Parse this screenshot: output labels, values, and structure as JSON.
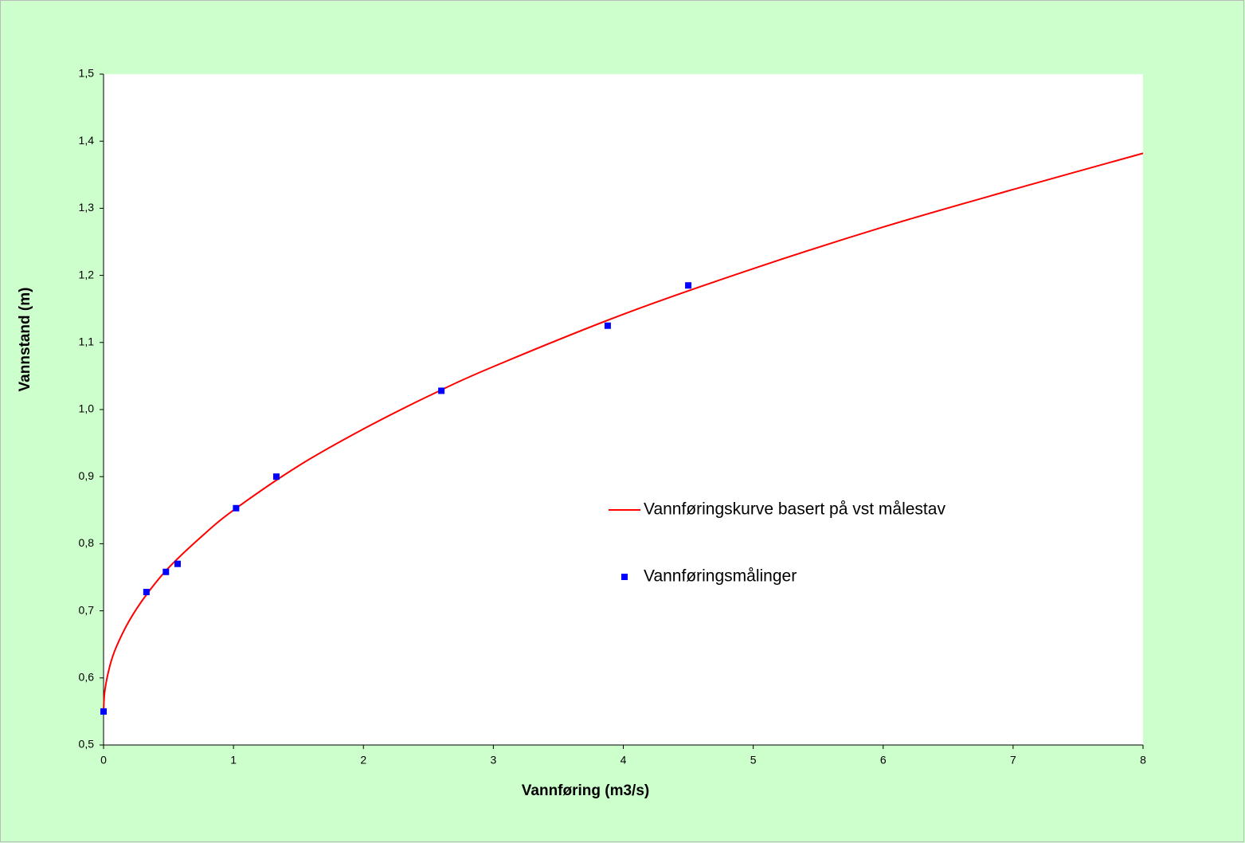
{
  "chart_data": {
    "type": "scatter",
    "xlabel": "Vannføring (m3/s)",
    "ylabel": "Vannstand (m)",
    "xlim": [
      0,
      8
    ],
    "xticks": [
      0,
      1,
      2,
      3,
      4,
      5,
      6,
      7,
      8
    ],
    "ylim": [
      0.5,
      1.5
    ],
    "yticks": [
      {
        "value": 0.5,
        "label": "0,5"
      },
      {
        "value": 0.6,
        "label": "0,6"
      },
      {
        "value": 0.7,
        "label": "0,7"
      },
      {
        "value": 0.8,
        "label": "0,8"
      },
      {
        "value": 0.9,
        "label": "0,9"
      },
      {
        "value": 1.0,
        "label": "1,0"
      },
      {
        "value": 1.1,
        "label": "1,1"
      },
      {
        "value": 1.2,
        "label": "1,2"
      },
      {
        "value": 1.3,
        "label": "1,3"
      },
      {
        "value": 1.4,
        "label": "1,4"
      },
      {
        "value": 1.5,
        "label": "1,5"
      }
    ],
    "series": [
      {
        "name": "Vannføringskurve basert på vst målestav",
        "type": "line",
        "color": "#ff0000",
        "x": [
          0,
          0.01,
          0.05,
          0.1,
          0.2,
          0.33,
          0.5,
          0.75,
          1,
          1.5,
          2,
          2.5,
          3,
          4,
          5,
          6,
          7,
          8
        ],
        "values": [
          0.55,
          0.581,
          0.619,
          0.647,
          0.686,
          0.724,
          0.764,
          0.81,
          0.85,
          0.916,
          0.971,
          1.02,
          1.064,
          1.142,
          1.21,
          1.272,
          1.328,
          1.382
        ]
      },
      {
        "name": "Vannføringsmålinger",
        "type": "scatter",
        "color": "#0000ff",
        "x": [
          0,
          0.33,
          0.48,
          0.57,
          1.02,
          1.33,
          2.6,
          3.88,
          4.5
        ],
        "values": [
          0.55,
          0.728,
          0.758,
          0.77,
          0.853,
          0.9,
          1.028,
          1.125,
          1.185
        ]
      }
    ]
  }
}
